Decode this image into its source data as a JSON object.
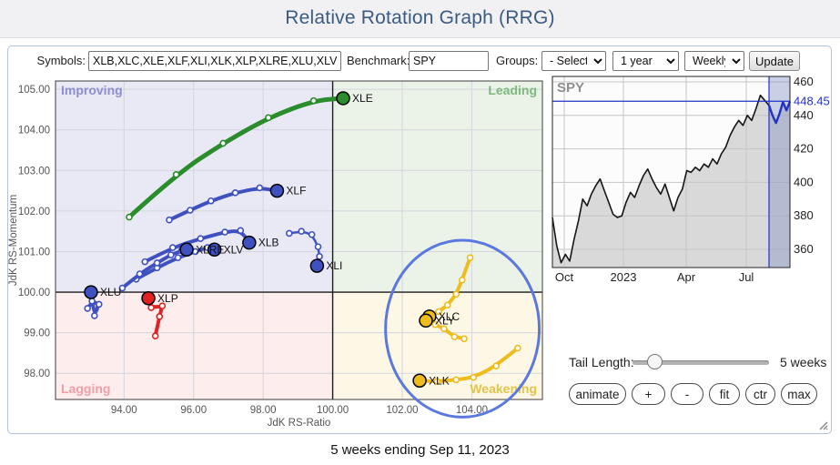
{
  "header": {
    "title": "Relative Rotation Graph (RRG)"
  },
  "toolbar": {
    "symbols_label": "Symbols:",
    "symbols_value": "XLB,XLC,XLE,XLF,XLI,XLK,XLP,XLRE,XLU,XLV,XL",
    "benchmark_label": "Benchmark:",
    "benchmark_value": "SPY",
    "groups_label": "Groups:",
    "groups_value": "- Select -",
    "period_value": "1 year",
    "frequency_value": "Weekly",
    "update_label": "Update"
  },
  "controls": {
    "tail_length_label": "Tail Length:",
    "tail_length_value": "5 weeks",
    "buttons": [
      "animate",
      "+",
      "-",
      "fit",
      "ctr",
      "max"
    ]
  },
  "caption": "5 weeks ending Sep 11, 2023",
  "chart_data": {
    "rrg": {
      "type": "scatter",
      "xlabel": "JdK RS-Ratio",
      "ylabel": "JdK RS-Momentum",
      "x_ticks": [
        94,
        96,
        98,
        100,
        102,
        104
      ],
      "y_ticks": [
        105,
        104,
        103,
        102,
        101,
        100,
        99,
        98
      ],
      "xlim": [
        92.03,
        106.03
      ],
      "ylim": [
        97.355,
        105.205
      ],
      "quadrants": {
        "improving": {
          "label": "Improving",
          "bg": "#e9e9f6",
          "color": "#8d8dd0"
        },
        "leading": {
          "label": "Leading",
          "bg": "#ebf3e9",
          "color": "#7db87d"
        },
        "lagging": {
          "label": "Lagging",
          "bg": "#fdeded",
          "color": "#f09fa7"
        },
        "weakening": {
          "label": "Weakening",
          "bg": "#fdf8e6",
          "color": "#e3c34a"
        }
      },
      "series": [
        {
          "symbol": "XLE",
          "color": "#2a8c2a",
          "width": 5,
          "head": [
            100.3,
            104.78
          ],
          "tail": [
            [
              94.15,
              101.85
            ],
            [
              95.5,
              102.9
            ],
            [
              96.85,
              103.67
            ],
            [
              98.15,
              104.3
            ],
            [
              99.45,
              104.72
            ]
          ]
        },
        {
          "symbol": "XLF",
          "color": "#3f51c1",
          "width": 4,
          "head": [
            98.4,
            102.5
          ],
          "tail": [
            [
              95.3,
              101.78
            ],
            [
              95.9,
              102.02
            ],
            [
              96.5,
              102.25
            ],
            [
              97.2,
              102.45
            ],
            [
              97.9,
              102.57
            ]
          ]
        },
        {
          "symbol": "XLB",
          "color": "#3f51c1",
          "width": 4,
          "head": [
            97.6,
            101.22
          ],
          "tail": [
            [
              94.6,
              100.75
            ],
            [
              95.4,
              101.1
            ],
            [
              96.2,
              101.32
            ],
            [
              96.9,
              101.48
            ],
            [
              97.35,
              101.52
            ]
          ]
        },
        {
          "symbol": "XLV",
          "color": "#3f51c1",
          "width": 4,
          "head": [
            96.6,
            101.05
          ],
          "tail": [
            [
              94.35,
              100.32
            ],
            [
              94.95,
              100.6
            ],
            [
              95.55,
              100.85
            ],
            [
              96.05,
              101.0
            ],
            [
              96.4,
              101.1
            ]
          ]
        },
        {
          "symbol": "XLRE",
          "color": "#3f51c1",
          "width": 4,
          "head": [
            95.8,
            101.05
          ],
          "tail": [
            [
              93.95,
              100.1
            ],
            [
              94.45,
              100.45
            ],
            [
              94.95,
              100.72
            ],
            [
              95.35,
              100.92
            ],
            [
              95.65,
              101.02
            ]
          ]
        },
        {
          "symbol": "XLI",
          "color": "#3f51c1",
          "width": 2.5,
          "head": [
            99.55,
            100.65
          ],
          "tail": [
            [
              98.75,
              101.45
            ],
            [
              99.1,
              101.5
            ],
            [
              99.4,
              101.42
            ],
            [
              99.58,
              101.12
            ],
            [
              99.62,
              100.88
            ]
          ]
        },
        {
          "symbol": "XLU",
          "color": "#3f51c1",
          "width": 4,
          "head": [
            93.05,
            100.0
          ],
          "tail": [
            [
              92.95,
              99.6
            ],
            [
              93.08,
              99.78
            ],
            [
              93.28,
              99.7
            ],
            [
              93.15,
              99.42
            ]
          ]
        },
        {
          "symbol": "XLP",
          "color": "#e02222",
          "width": 4,
          "head": [
            94.7,
            99.85
          ],
          "tail": [
            [
              94.9,
              98.92
            ],
            [
              95.02,
              99.4
            ],
            [
              95.1,
              99.66
            ],
            [
              94.78,
              99.62
            ]
          ]
        },
        {
          "symbol": "XLC",
          "color": "#eebc1d",
          "width": 4,
          "head": [
            102.78,
            99.4
          ],
          "tail": [
            [
              103.95,
              100.85
            ],
            [
              103.72,
              100.3
            ],
            [
              103.55,
              99.95
            ],
            [
              103.3,
              99.68
            ],
            [
              103.05,
              99.52
            ]
          ]
        },
        {
          "symbol": "XLY",
          "color": "#eebc1d",
          "width": 4,
          "head": [
            102.68,
            99.3
          ],
          "tail": [
            [
              103.78,
              98.85
            ],
            [
              103.5,
              98.9
            ],
            [
              103.2,
              99.1
            ],
            [
              102.95,
              99.2
            ]
          ]
        },
        {
          "symbol": "XLK",
          "color": "#eebc1d",
          "width": 4,
          "head": [
            102.5,
            97.82
          ],
          "tail": [
            [
              105.32,
              98.62
            ],
            [
              104.7,
              98.18
            ],
            [
              104.05,
              97.9
            ],
            [
              103.55,
              97.84
            ],
            [
              103.0,
              97.8
            ]
          ]
        }
      ],
      "annotation_ellipse": {
        "cx": 103.73,
        "cy": 99.1,
        "rx": 2.21,
        "ry": 2.18,
        "color": "#5b78e0"
      }
    },
    "spy": {
      "type": "line",
      "title": "SPY",
      "last_price": "448.45",
      "last_price_value": 448.45,
      "y_ticks": [
        460,
        440,
        420,
        400,
        380,
        360
      ],
      "x_tick_labels": [
        "Oct",
        "2023",
        "Apr",
        "Jul"
      ],
      "line_color": "#161616",
      "highlight_color": "#2231c8",
      "values": [
        379,
        362,
        352,
        357,
        353,
        366,
        377,
        390,
        386,
        393,
        398,
        402,
        395,
        388,
        381,
        379,
        380,
        388,
        394,
        391,
        398,
        404,
        408,
        402,
        397,
        393,
        399,
        391,
        383,
        391,
        396,
        407,
        406,
        409,
        407,
        411,
        409,
        414,
        411,
        417,
        421,
        428,
        433,
        437,
        434,
        440,
        437,
        444,
        452,
        449,
        446
      ],
      "highlight_values": [
        446,
        440,
        435.5,
        441,
        448,
        443,
        448.45
      ]
    }
  }
}
